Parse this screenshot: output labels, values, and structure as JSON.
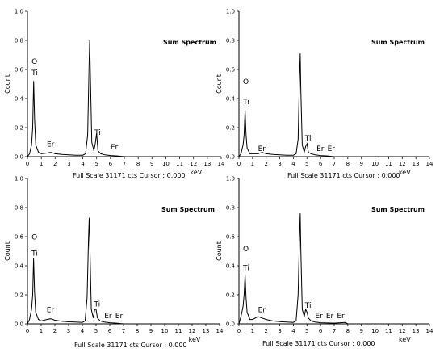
{
  "chart_data": [
    {
      "type": "line",
      "title": "Sum Spectrum",
      "xlabel": "keV",
      "ylabel": "Count",
      "footer": "Full Scale 31171 cts Cursor : 0.000",
      "xlim": [
        0,
        14
      ],
      "ylim": [
        0,
        1.0
      ],
      "x_ticks": [
        "0",
        "1",
        "2",
        "3",
        "4",
        "5",
        "6",
        "7",
        "8",
        "9",
        "10",
        "11",
        "12",
        "13",
        "14"
      ],
      "y_ticks": [
        "0.0",
        "0.2",
        "0.4",
        "0.6",
        "0.8",
        "1.0"
      ],
      "series": [
        {
          "x": [
            0,
            0.15,
            0.3,
            0.38,
            0.45,
            0.52,
            0.6,
            0.8,
            1.0,
            1.4,
            1.7,
            2.0,
            2.5,
            3.0,
            3.5,
            4.0,
            4.2,
            4.35,
            4.45,
            4.5,
            4.55,
            4.65,
            4.8,
            4.9,
            5.0,
            5.1,
            5.3,
            5.6,
            6.0,
            6.5,
            7.0
          ],
          "y": [
            0.0,
            0.02,
            0.08,
            0.2,
            0.52,
            0.25,
            0.08,
            0.03,
            0.02,
            0.025,
            0.03,
            0.02,
            0.015,
            0.012,
            0.01,
            0.01,
            0.02,
            0.15,
            0.62,
            0.8,
            0.55,
            0.1,
            0.04,
            0.09,
            0.16,
            0.04,
            0.02,
            0.012,
            0.008,
            0.005,
            0.0
          ]
        }
      ],
      "peaks": [
        {
          "label": "O",
          "x": 0.3,
          "y": 0.64
        },
        {
          "label": "Ti",
          "x": 0.3,
          "y": 0.56
        },
        {
          "label": "Er",
          "x": 1.4,
          "y": 0.07
        },
        {
          "label": "Ti",
          "x": 4.85,
          "y": 0.15
        },
        {
          "label": "Er",
          "x": 6.0,
          "y": 0.05
        }
      ]
    },
    {
      "type": "line",
      "title": "Sum Spectrum",
      "xlabel": "keV",
      "ylabel": "Count",
      "footer": "Full Scale 31171 cts Cursor : 0.000",
      "xlim": [
        0,
        14
      ],
      "ylim": [
        0,
        1.0
      ],
      "x_ticks": [
        "0",
        "1",
        "2",
        "3",
        "4",
        "5",
        "6",
        "7",
        "8",
        "9",
        "10",
        "11",
        "12",
        "13",
        "14"
      ],
      "y_ticks": [
        "0.0",
        "0.2",
        "0.4",
        "0.6",
        "0.8",
        "1.0"
      ],
      "series": [
        {
          "x": [
            0,
            0.15,
            0.3,
            0.38,
            0.45,
            0.52,
            0.6,
            0.8,
            1.0,
            1.4,
            1.7,
            2.0,
            2.5,
            3.0,
            3.5,
            4.0,
            4.2,
            4.35,
            4.45,
            4.5,
            4.55,
            4.65,
            4.8,
            4.9,
            5.0,
            5.1,
            5.3,
            5.6,
            6.0,
            6.5,
            7.0
          ],
          "y": [
            0.0,
            0.02,
            0.08,
            0.15,
            0.32,
            0.15,
            0.06,
            0.02,
            0.02,
            0.02,
            0.03,
            0.02,
            0.015,
            0.012,
            0.01,
            0.01,
            0.02,
            0.12,
            0.55,
            0.71,
            0.45,
            0.08,
            0.03,
            0.07,
            0.09,
            0.03,
            0.02,
            0.012,
            0.008,
            0.005,
            0.0
          ]
        }
      ],
      "peaks": [
        {
          "label": "O",
          "x": 0.3,
          "y": 0.5
        },
        {
          "label": "Ti",
          "x": 0.3,
          "y": 0.36
        },
        {
          "label": "Er",
          "x": 1.4,
          "y": 0.04
        },
        {
          "label": "Ti",
          "x": 4.85,
          "y": 0.11
        },
        {
          "label": "Er",
          "x": 5.7,
          "y": 0.04
        },
        {
          "label": "Er",
          "x": 6.5,
          "y": 0.04
        }
      ]
    },
    {
      "type": "line",
      "title": "Sum Spectrum",
      "xlabel": "keV",
      "ylabel": "Count",
      "footer": "Full Scale 31171 cts Cursor : 0.000",
      "xlim": [
        0,
        14
      ],
      "ylim": [
        0,
        1.0
      ],
      "x_ticks": [
        "0",
        "1",
        "2",
        "3",
        "4",
        "5",
        "6",
        "7",
        "8",
        "9",
        "10",
        "11",
        "12",
        "13",
        "14"
      ],
      "y_ticks": [
        "0.0",
        "0.2",
        "0.4",
        "0.6",
        "0.8",
        "1.0"
      ],
      "series": [
        {
          "x": [
            0,
            0.15,
            0.3,
            0.38,
            0.45,
            0.52,
            0.6,
            0.8,
            1.0,
            1.4,
            1.7,
            2.0,
            2.5,
            3.0,
            3.5,
            4.0,
            4.2,
            4.35,
            4.45,
            4.5,
            4.55,
            4.65,
            4.8,
            4.9,
            5.0,
            5.1,
            5.3,
            5.6,
            6.0,
            6.5,
            7.0
          ],
          "y": [
            0.0,
            0.03,
            0.1,
            0.2,
            0.45,
            0.22,
            0.08,
            0.03,
            0.02,
            0.03,
            0.035,
            0.025,
            0.018,
            0.014,
            0.012,
            0.01,
            0.02,
            0.18,
            0.6,
            0.73,
            0.52,
            0.1,
            0.04,
            0.1,
            0.1,
            0.04,
            0.02,
            0.012,
            0.008,
            0.005,
            0.0
          ]
        }
      ],
      "peaks": [
        {
          "label": "O",
          "x": 0.3,
          "y": 0.58
        },
        {
          "label": "Ti",
          "x": 0.3,
          "y": 0.47
        },
        {
          "label": "Er",
          "x": 1.4,
          "y": 0.08
        },
        {
          "label": "Ti",
          "x": 4.85,
          "y": 0.12
        },
        {
          "label": "Er",
          "x": 5.6,
          "y": 0.04
        },
        {
          "label": "Er",
          "x": 6.4,
          "y": 0.04
        }
      ]
    },
    {
      "type": "line",
      "title": "Sum Spectrum",
      "xlabel": "keV",
      "ylabel": "Count",
      "footer": "Full Scale 31171 cts Cursor : 0.000",
      "xlim": [
        0,
        14
      ],
      "ylim": [
        0,
        1.0
      ],
      "x_ticks": [
        "0",
        "1",
        "2",
        "3",
        "4",
        "5",
        "6",
        "7",
        "8",
        "9",
        "10",
        "11",
        "12",
        "13",
        "14"
      ],
      "y_ticks": [
        "0.0",
        "0.2",
        "0.4",
        "0.6",
        "0.8",
        "1.0"
      ],
      "series": [
        {
          "x": [
            0,
            0.15,
            0.3,
            0.38,
            0.45,
            0.52,
            0.6,
            0.8,
            1.0,
            1.4,
            1.7,
            2.0,
            2.5,
            3.0,
            3.5,
            4.0,
            4.2,
            4.35,
            4.45,
            4.5,
            4.55,
            4.65,
            4.8,
            4.9,
            5.0,
            5.1,
            5.3,
            5.6,
            6.0,
            6.5,
            7.0,
            7.8,
            8.0
          ],
          "y": [
            0.0,
            0.05,
            0.12,
            0.2,
            0.34,
            0.18,
            0.08,
            0.03,
            0.03,
            0.05,
            0.04,
            0.03,
            0.02,
            0.015,
            0.012,
            0.01,
            0.02,
            0.2,
            0.6,
            0.76,
            0.5,
            0.1,
            0.05,
            0.1,
            0.08,
            0.04,
            0.02,
            0.012,
            0.008,
            0.006,
            0.005,
            0.01,
            0.0
          ]
        }
      ],
      "peaks": [
        {
          "label": "O",
          "x": 0.3,
          "y": 0.5
        },
        {
          "label": "Ti",
          "x": 0.3,
          "y": 0.37
        },
        {
          "label": "Er",
          "x": 1.4,
          "y": 0.08
        },
        {
          "label": "Ti",
          "x": 4.85,
          "y": 0.11
        },
        {
          "label": "Er",
          "x": 5.6,
          "y": 0.04
        },
        {
          "label": "Er",
          "x": 6.4,
          "y": 0.04
        },
        {
          "label": "Er",
          "x": 7.2,
          "y": 0.04
        }
      ]
    }
  ]
}
